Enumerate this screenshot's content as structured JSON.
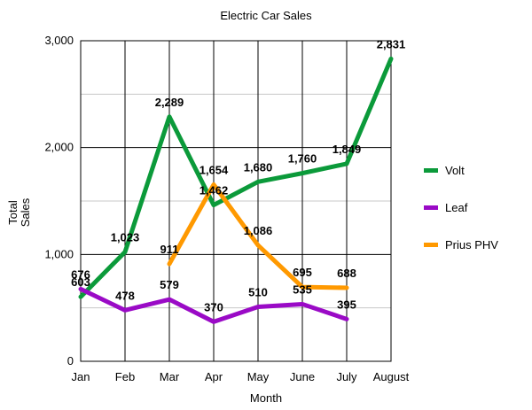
{
  "chart_data": {
    "type": "line",
    "title": "Electric Car Sales",
    "xlabel": "Month",
    "ylabel": "Total Sales",
    "categories": [
      "Jan",
      "Feb",
      "Mar",
      "Apr",
      "May",
      "June",
      "July",
      "August"
    ],
    "ylim": [
      0,
      3000
    ],
    "yticks": [
      "0",
      "1,000",
      "2,000",
      "3,000"
    ],
    "grid": true,
    "legend_position": "right",
    "series": [
      {
        "name": "Volt",
        "color": "#0b9a3a",
        "values": [
          603,
          1023,
          2289,
          1462,
          1680,
          1760,
          1849,
          2831
        ],
        "labels": [
          "603",
          "1,023",
          "2,289",
          "1,462",
          "1,680",
          "1,760",
          "1,849",
          "2,831"
        ]
      },
      {
        "name": "Leaf",
        "color": "#9a0ac6",
        "values": [
          676,
          478,
          579,
          370,
          510,
          535,
          395,
          null
        ],
        "labels": [
          "676",
          "478",
          "579",
          "370",
          "510",
          "535",
          "395",
          null
        ]
      },
      {
        "name": "Prius PHV",
        "color": "#ff9900",
        "values": [
          null,
          null,
          911,
          1654,
          1086,
          695,
          688,
          null
        ],
        "labels": [
          null,
          null,
          "911",
          "1,654",
          "1,086",
          "695",
          "688",
          null
        ]
      }
    ]
  }
}
